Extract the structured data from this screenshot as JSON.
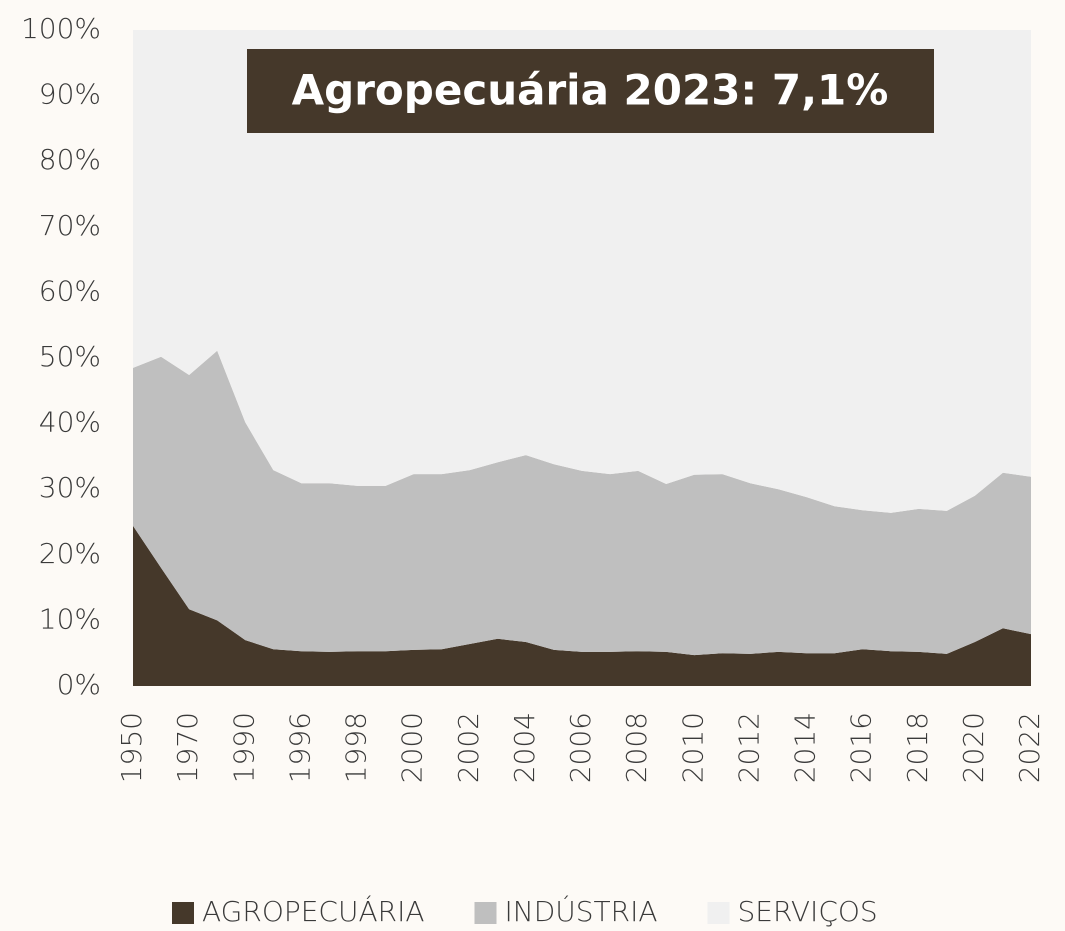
{
  "chart_data": {
    "type": "stacked_area",
    "annotation": "Agropecuária 2023: 7,1%",
    "categories": [
      "1950",
      null,
      "1970",
      null,
      "1990",
      null,
      "1996",
      null,
      "1998",
      null,
      "2000",
      null,
      "2002",
      null,
      "2004",
      null,
      "2006",
      null,
      "2008",
      null,
      "2010",
      null,
      "2012",
      null,
      "2014",
      null,
      "2016",
      null,
      "2018",
      null,
      "2020",
      null,
      "2022"
    ],
    "series": [
      {
        "name": "AGROPECUÁRIA",
        "color": "#45382a",
        "values": [
          24.4,
          18,
          11.7,
          10,
          7,
          5.6,
          5.3,
          5.2,
          5.3,
          5.3,
          5.5,
          5.6,
          6.4,
          7.2,
          6.7,
          5.5,
          5.2,
          5.2,
          5.3,
          5.2,
          4.7,
          5.0,
          4.9,
          5.2,
          5.0,
          5.0,
          5.6,
          5.3,
          5.2,
          4.9,
          6.7,
          8.8,
          7.9
        ]
      },
      {
        "name": "INDÚSTRIA",
        "color": "#bfbfbf",
        "values": [
          24.1,
          32.2,
          35.7,
          41.1,
          33.2,
          27.3,
          25.6,
          25.7,
          25.2,
          25.2,
          26.8,
          26.7,
          26.5,
          26.9,
          28.5,
          28.3,
          27.6,
          27.1,
          27.5,
          25.6,
          27.5,
          27.3,
          26.0,
          24.8,
          23.8,
          22.4,
          21.2,
          21.1,
          21.8,
          21.8,
          22.3,
          23.7,
          24.0
        ]
      },
      {
        "name": "SERVIÇOS",
        "color": "#f0f0f0",
        "values": [
          51.5,
          49.8,
          52.6,
          48.9,
          59.8,
          67.1,
          69.1,
          69.1,
          69.5,
          69.5,
          67.7,
          67.7,
          67.1,
          65.9,
          64.8,
          66.2,
          67.2,
          67.7,
          67.2,
          69.2,
          67.8,
          67.7,
          69.1,
          70.0,
          71.2,
          72.6,
          73.2,
          73.6,
          73.0,
          73.3,
          71.0,
          67.5,
          68.1
        ]
      }
    ],
    "ylim": [
      0,
      100
    ],
    "yticks": [
      {
        "value": 0,
        "label": "0%"
      },
      {
        "value": 10,
        "label": "10%"
      },
      {
        "value": 20,
        "label": "20%"
      },
      {
        "value": 30,
        "label": "30%"
      },
      {
        "value": 40,
        "label": "40%"
      },
      {
        "value": 50,
        "label": "50%"
      },
      {
        "value": 60,
        "label": "60%"
      },
      {
        "value": 70,
        "label": "70%"
      },
      {
        "value": 80,
        "label": "80%"
      },
      {
        "value": 90,
        "label": "90%"
      },
      {
        "value": 100,
        "label": "100%"
      }
    ],
    "legend": "bottom"
  }
}
